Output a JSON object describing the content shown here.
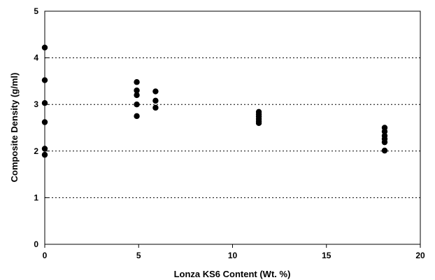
{
  "chart_data": {
    "type": "scatter",
    "title": "",
    "xlabel": "Lonza KS6 Content (Wt. %)",
    "ylabel": "Composite Density (g/ml)",
    "xlim": [
      0,
      20
    ],
    "ylim": [
      0,
      5
    ],
    "xticks": [
      0,
      5,
      10,
      15,
      20
    ],
    "yticks": [
      0,
      1,
      2,
      3,
      4,
      5
    ],
    "grid": "horizontal-dotted",
    "marker_color": "#000000",
    "grid_color": "#000000",
    "series": [
      {
        "points": [
          [
            0,
            4.22
          ],
          [
            0,
            3.52
          ],
          [
            0,
            3.03
          ],
          [
            0,
            2.62
          ],
          [
            0,
            2.05
          ],
          [
            0,
            1.92
          ],
          [
            4.9,
            3.48
          ],
          [
            4.9,
            3.3
          ],
          [
            4.9,
            3.2
          ],
          [
            4.9,
            3.0
          ],
          [
            4.9,
            2.75
          ],
          [
            5.9,
            3.28
          ],
          [
            5.9,
            3.08
          ],
          [
            5.9,
            2.93
          ],
          [
            11.4,
            2.84
          ],
          [
            11.4,
            2.79
          ],
          [
            11.4,
            2.74
          ],
          [
            11.4,
            2.69
          ],
          [
            11.4,
            2.64
          ],
          [
            11.4,
            2.6
          ],
          [
            18.1,
            2.5
          ],
          [
            18.1,
            2.42
          ],
          [
            18.1,
            2.33
          ],
          [
            18.1,
            2.26
          ],
          [
            18.1,
            2.19
          ],
          [
            18.1,
            2.01
          ]
        ]
      }
    ]
  }
}
